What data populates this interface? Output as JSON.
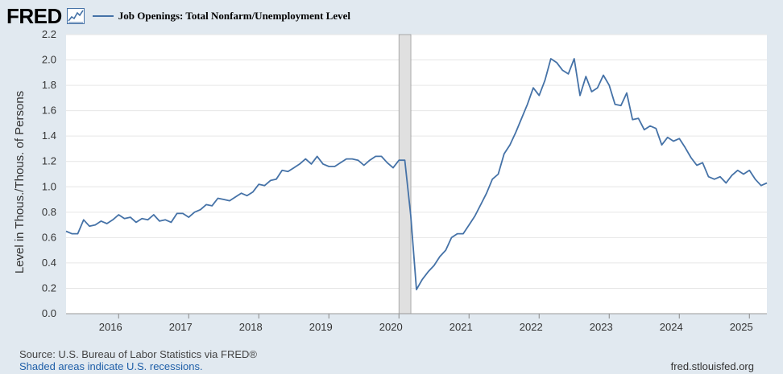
{
  "brand": {
    "logo_text": "FRED",
    "icon": "chart-line-icon"
  },
  "series_title": "Job Openings: Total Nonfarm/Unemployment Level",
  "footer": {
    "source": "Source: U.S. Bureau of Labor Statistics via FRED®",
    "note": "Shaded areas indicate U.S. recessions.",
    "site": "fred.stlouisfed.org"
  },
  "colors": {
    "line": "#4572a7",
    "plot_bg": "#ffffff",
    "page_bg": "#e1e9f0",
    "grid": "#e6e6e6",
    "recession": "#e0e0e0"
  },
  "chart_data": {
    "type": "line",
    "ylabel": "Level in Thous./Thous. of Persons",
    "xlabel": "",
    "ylim": [
      0,
      2.2
    ],
    "xlim": [
      2015.25,
      2025.25
    ],
    "y_ticks": [
      "0.0",
      "0.2",
      "0.4",
      "0.6",
      "0.8",
      "1.0",
      "1.2",
      "1.4",
      "1.6",
      "1.8",
      "2.0",
      "2.2"
    ],
    "x_ticks": [
      "2016",
      "2017",
      "2018",
      "2019",
      "2020",
      "2021",
      "2022",
      "2023",
      "2024",
      "2025"
    ],
    "grid": true,
    "recessions": [
      [
        2020.0,
        2020.17
      ]
    ],
    "series": [
      {
        "name": "Job Openings: Total Nonfarm/Unemployment Level",
        "frequency": "monthly",
        "x_start": 2015.25,
        "values": [
          0.65,
          0.63,
          0.63,
          0.74,
          0.69,
          0.7,
          0.73,
          0.71,
          0.74,
          0.78,
          0.75,
          0.76,
          0.72,
          0.75,
          0.74,
          0.78,
          0.73,
          0.74,
          0.72,
          0.79,
          0.79,
          0.76,
          0.8,
          0.82,
          0.86,
          0.85,
          0.91,
          0.9,
          0.89,
          0.92,
          0.95,
          0.93,
          0.96,
          1.02,
          1.01,
          1.05,
          1.06,
          1.13,
          1.12,
          1.15,
          1.18,
          1.22,
          1.18,
          1.24,
          1.18,
          1.16,
          1.16,
          1.19,
          1.22,
          1.22,
          1.21,
          1.17,
          1.21,
          1.24,
          1.24,
          1.19,
          1.15,
          1.21,
          1.21,
          0.78,
          0.19,
          0.27,
          0.33,
          0.38,
          0.45,
          0.5,
          0.6,
          0.63,
          0.63,
          0.7,
          0.77,
          0.86,
          0.95,
          1.06,
          1.1,
          1.26,
          1.33,
          1.43,
          1.54,
          1.65,
          1.78,
          1.72,
          1.84,
          2.01,
          1.98,
          1.92,
          1.89,
          2.01,
          1.72,
          1.87,
          1.75,
          1.78,
          1.88,
          1.8,
          1.65,
          1.64,
          1.74,
          1.53,
          1.54,
          1.45,
          1.48,
          1.46,
          1.33,
          1.39,
          1.36,
          1.38,
          1.31,
          1.23,
          1.17,
          1.19,
          1.08,
          1.06,
          1.08,
          1.03,
          1.09,
          1.13,
          1.1,
          1.13,
          1.06,
          1.01,
          1.03
        ]
      }
    ]
  }
}
